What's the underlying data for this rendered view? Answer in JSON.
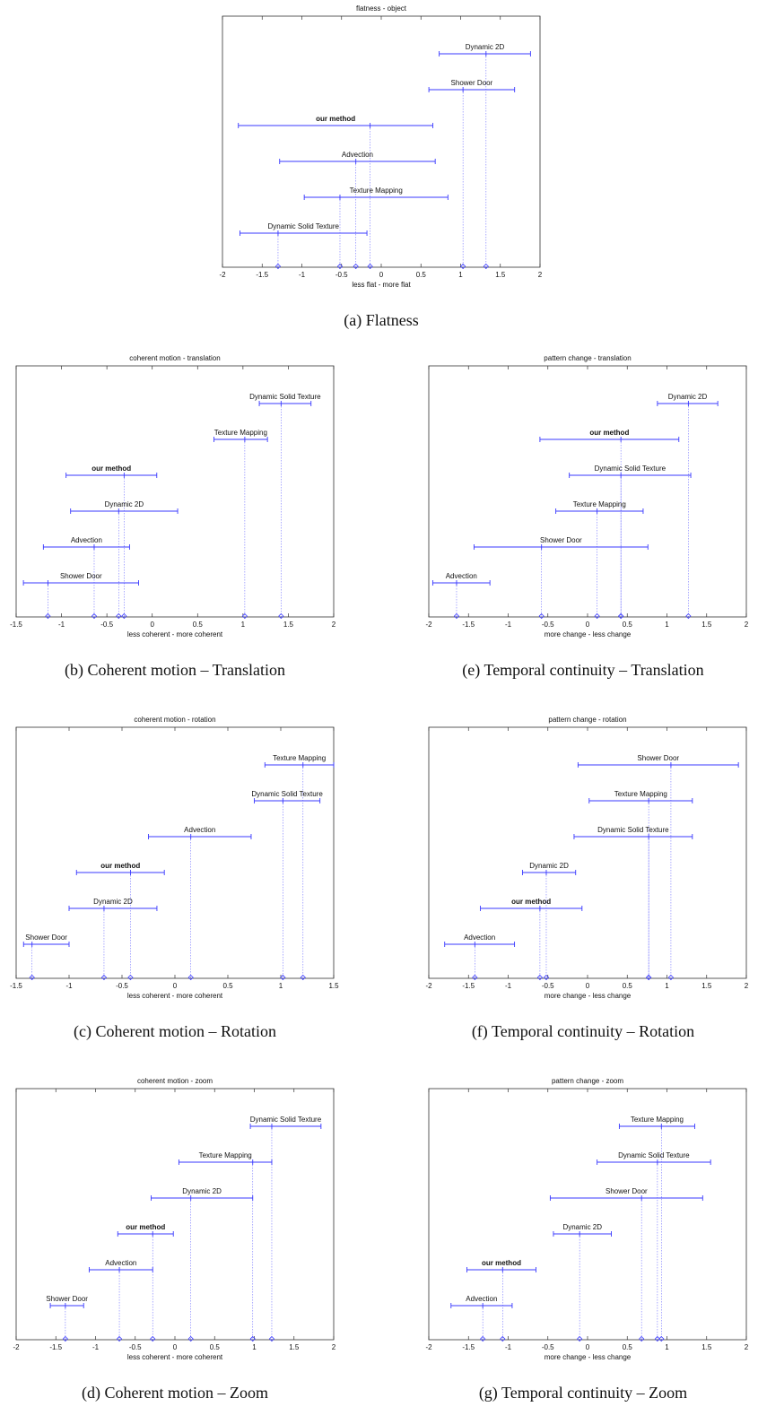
{
  "colors": {
    "bar": "#3a3aff",
    "frame": "#333333",
    "text": "#111111"
  },
  "chart_data": [
    {
      "id": "a",
      "type": "interval",
      "title": "flatness - object",
      "xlabel": "less flat - more flat",
      "caption": "(a)  Flatness",
      "xlim": [
        -2,
        2
      ],
      "ticks": [
        "-2",
        "-1.5",
        "-1",
        "-0.5",
        "0",
        "0.5",
        "1",
        "1.5",
        "2"
      ],
      "tick_values": [
        -2,
        -1.5,
        -1,
        -0.5,
        0,
        0.5,
        1,
        1.5,
        2
      ],
      "items": [
        {
          "label": "Dynamic 2D",
          "mean": 1.32,
          "low": 0.73,
          "high": 1.88,
          "bold": false
        },
        {
          "label": "Shower Door",
          "mean": 1.03,
          "low": 0.6,
          "high": 1.68,
          "bold": false
        },
        {
          "label": "our method",
          "mean": -0.14,
          "low": -1.8,
          "high": 0.65,
          "bold": true
        },
        {
          "label": "Advection",
          "mean": -0.32,
          "low": -1.28,
          "high": 0.68,
          "bold": false
        },
        {
          "label": "Texture Mapping",
          "mean": -0.52,
          "low": -0.97,
          "high": 0.84,
          "bold": false
        },
        {
          "label": "Dynamic Solid Texture",
          "mean": -1.3,
          "low": -1.78,
          "high": -0.18,
          "bold": false
        }
      ]
    },
    {
      "id": "b",
      "type": "interval",
      "title": "coherent motion - translation",
      "xlabel": "less coherent - more coherent",
      "caption": "(b)  Coherent motion – Translation",
      "xlim": [
        -1.5,
        2
      ],
      "ticks": [
        "-1.5",
        "-1",
        "-0.5",
        "0",
        "0.5",
        "1",
        "1.5",
        "2"
      ],
      "tick_values": [
        -1.5,
        -1,
        -0.5,
        0,
        0.5,
        1,
        1.5,
        2
      ],
      "items": [
        {
          "label": "Dynamic Solid Texture",
          "mean": 1.42,
          "low": 1.18,
          "high": 1.75,
          "bold": false
        },
        {
          "label": "Texture Mapping",
          "mean": 1.02,
          "low": 0.68,
          "high": 1.27,
          "bold": false
        },
        {
          "label": "our method",
          "mean": -0.31,
          "low": -0.95,
          "high": 0.05,
          "bold": true
        },
        {
          "label": "Dynamic 2D",
          "mean": -0.37,
          "low": -0.9,
          "high": 0.28,
          "bold": false
        },
        {
          "label": "Advection",
          "mean": -0.64,
          "low": -1.2,
          "high": -0.25,
          "bold": false
        },
        {
          "label": "Shower Door",
          "mean": -1.15,
          "low": -1.42,
          "high": -0.15,
          "bold": false
        }
      ]
    },
    {
      "id": "e",
      "type": "interval",
      "title": "pattern change - translation",
      "xlabel": "more change - less change",
      "caption": "(e)  Temporal continuity – Translation",
      "xlim": [
        -2,
        2
      ],
      "ticks": [
        "-2",
        "-1.5",
        "-1",
        "-0.5",
        "0",
        "0.5",
        "1",
        "1.5",
        "2"
      ],
      "tick_values": [
        -2,
        -1.5,
        -1,
        -0.5,
        0,
        0.5,
        1,
        1.5,
        2
      ],
      "items": [
        {
          "label": "Dynamic 2D",
          "mean": 1.27,
          "low": 0.88,
          "high": 1.64,
          "bold": false
        },
        {
          "label": "our method",
          "mean": 0.42,
          "low": -0.6,
          "high": 1.15,
          "bold": true
        },
        {
          "label": "Dynamic Solid Texture",
          "mean": 0.42,
          "low": -0.23,
          "high": 1.3,
          "bold": false
        },
        {
          "label": "Texture Mapping",
          "mean": 0.12,
          "low": -0.4,
          "high": 0.7,
          "bold": false
        },
        {
          "label": "Shower Door",
          "mean": -0.58,
          "low": -1.43,
          "high": 0.76,
          "bold": false
        },
        {
          "label": "Advection",
          "mean": -1.65,
          "low": -1.95,
          "high": -1.23,
          "bold": false
        }
      ]
    },
    {
      "id": "c",
      "type": "interval",
      "title": "coherent motion - rotation",
      "xlabel": "less coherent - more coherent",
      "caption": "(c)  Coherent motion – Rotation",
      "xlim": [
        -1.5,
        1.5
      ],
      "ticks": [
        "-1.5",
        "-1",
        "-0.5",
        "0",
        "0.5",
        "1",
        "1.5"
      ],
      "tick_values": [
        -1.5,
        -1,
        -0.5,
        0,
        0.5,
        1,
        1.5
      ],
      "items": [
        {
          "label": "Texture Mapping",
          "mean": 1.21,
          "low": 0.85,
          "high": 1.5,
          "bold": false
        },
        {
          "label": "Dynamic Solid Texture",
          "mean": 1.02,
          "low": 0.75,
          "high": 1.37,
          "bold": false
        },
        {
          "label": "Advection",
          "mean": 0.15,
          "low": -0.25,
          "high": 0.72,
          "bold": false
        },
        {
          "label": "our method",
          "mean": -0.42,
          "low": -0.93,
          "high": -0.1,
          "bold": true
        },
        {
          "label": "Dynamic 2D",
          "mean": -0.67,
          "low": -1.0,
          "high": -0.17,
          "bold": false
        },
        {
          "label": "Shower Door",
          "mean": -1.35,
          "low": -1.43,
          "high": -1.0,
          "bold": false
        }
      ]
    },
    {
      "id": "f",
      "type": "interval",
      "title": "pattern change - rotation",
      "xlabel": "more change - less change",
      "caption": "(f)  Temporal continuity – Rotation",
      "xlim": [
        -2,
        2
      ],
      "ticks": [
        "-2",
        "-1.5",
        "-1",
        "-0.5",
        "0",
        "0.5",
        "1",
        "1.5",
        "2"
      ],
      "tick_values": [
        -2,
        -1.5,
        -1,
        -0.5,
        0,
        0.5,
        1,
        1.5,
        2
      ],
      "items": [
        {
          "label": "Shower Door",
          "mean": 1.05,
          "low": -0.12,
          "high": 1.9,
          "bold": false
        },
        {
          "label": "Texture Mapping",
          "mean": 0.77,
          "low": 0.02,
          "high": 1.32,
          "bold": false
        },
        {
          "label": "Dynamic Solid Texture",
          "mean": 0.77,
          "low": -0.17,
          "high": 1.32,
          "bold": false
        },
        {
          "label": "Dynamic 2D",
          "mean": -0.52,
          "low": -0.82,
          "high": -0.15,
          "bold": false
        },
        {
          "label": "our method",
          "mean": -0.6,
          "low": -1.35,
          "high": -0.07,
          "bold": true
        },
        {
          "label": "Advection",
          "mean": -1.42,
          "low": -1.8,
          "high": -0.92,
          "bold": false
        }
      ]
    },
    {
      "id": "d",
      "type": "interval",
      "title": "coherent motion - zoom",
      "xlabel": "less coherent - more coherent",
      "caption": "(d)  Coherent motion – Zoom",
      "xlim": [
        -2,
        2
      ],
      "ticks": [
        "-2",
        "-1.5",
        "-1",
        "-0.5",
        "0",
        "0.5",
        "1",
        "1.5",
        "2"
      ],
      "tick_values": [
        -2,
        -1.5,
        -1,
        -0.5,
        0,
        0.5,
        1,
        1.5,
        2
      ],
      "items": [
        {
          "label": "Dynamic Solid Texture",
          "mean": 1.22,
          "low": 0.95,
          "high": 1.84,
          "bold": false
        },
        {
          "label": "Texture Mapping",
          "mean": 0.98,
          "low": 0.05,
          "high": 1.22,
          "bold": false
        },
        {
          "label": "Dynamic 2D",
          "mean": 0.2,
          "low": -0.3,
          "high": 0.98,
          "bold": false
        },
        {
          "label": "our method",
          "mean": -0.28,
          "low": -0.72,
          "high": -0.02,
          "bold": true
        },
        {
          "label": "Advection",
          "mean": -0.7,
          "low": -1.08,
          "high": -0.28,
          "bold": false
        },
        {
          "label": "Shower Door",
          "mean": -1.38,
          "low": -1.57,
          "high": -1.15,
          "bold": false
        }
      ]
    },
    {
      "id": "g",
      "type": "interval",
      "title": "pattern change - zoom",
      "xlabel": "more change - less change",
      "caption": "(g)  Temporal continuity – Zoom",
      "xlim": [
        -2,
        2
      ],
      "ticks": [
        "-2",
        "-1.5",
        "-1",
        "-0.5",
        "0",
        "0.5",
        "1",
        "1.5",
        "2"
      ],
      "tick_values": [
        -2,
        -1.5,
        -1,
        -0.5,
        0,
        0.5,
        1,
        1.5,
        2
      ],
      "items": [
        {
          "label": "Texture Mapping",
          "mean": 0.93,
          "low": 0.4,
          "high": 1.35,
          "bold": false
        },
        {
          "label": "Dynamic Solid Texture",
          "mean": 0.88,
          "low": 0.12,
          "high": 1.55,
          "bold": false
        },
        {
          "label": "Shower Door",
          "mean": 0.68,
          "low": -0.47,
          "high": 1.45,
          "bold": false
        },
        {
          "label": "Dynamic 2D",
          "mean": -0.1,
          "low": -0.43,
          "high": 0.3,
          "bold": false
        },
        {
          "label": "our method",
          "mean": -1.07,
          "low": -1.52,
          "high": -0.65,
          "bold": true
        },
        {
          "label": "Advection",
          "mean": -1.32,
          "low": -1.72,
          "high": -0.95,
          "bold": false
        }
      ]
    }
  ]
}
